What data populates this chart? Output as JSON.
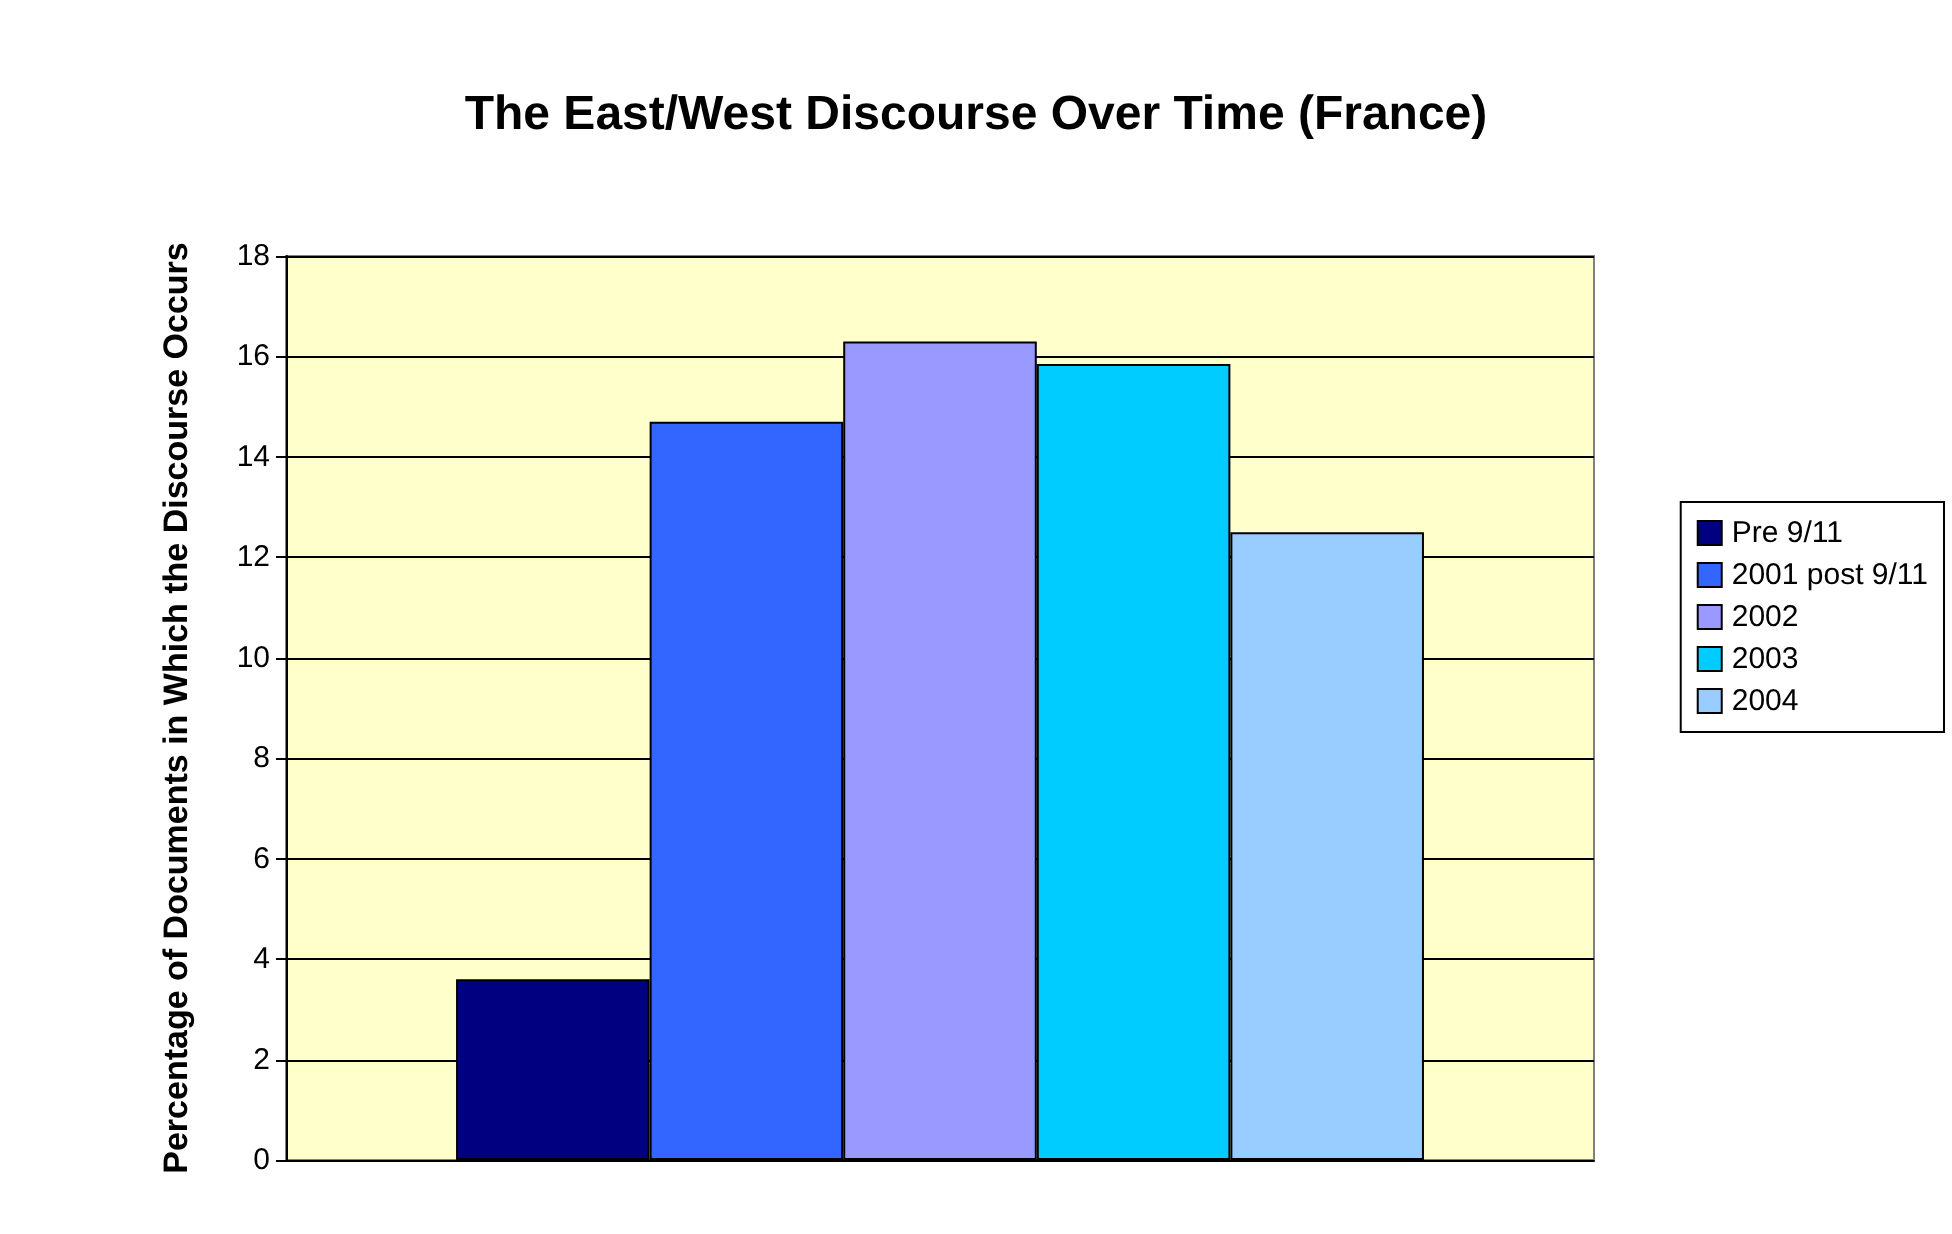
{
  "chart_data": {
    "type": "bar",
    "title": "The East/West Discourse Over Time (France)",
    "ylabel": "Percentage of Documents in Which the Discourse Occurs",
    "categories": [
      null
    ],
    "series": [
      {
        "name": "Pre 9/11",
        "color": "#000080",
        "values": [
          3.6
        ]
      },
      {
        "name": "2001 post 9/11",
        "color": "#3366ff",
        "values": [
          14.7
        ]
      },
      {
        "name": "2002",
        "color": "#9999ff",
        "values": [
          16.3
        ]
      },
      {
        "name": "2003",
        "color": "#00ccff",
        "values": [
          15.85
        ]
      },
      {
        "name": "2004",
        "color": "#99ccff",
        "values": [
          12.5
        ]
      }
    ],
    "ylim": [
      0,
      18
    ],
    "yticks": [
      0,
      2,
      4,
      6,
      8,
      10,
      12,
      14,
      16,
      18
    ],
    "grid": "y",
    "legend": "right"
  }
}
